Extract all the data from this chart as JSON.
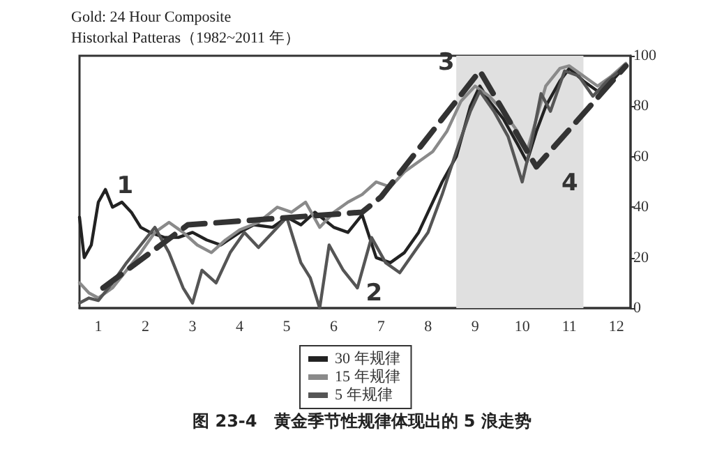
{
  "chart_data": {
    "type": "line",
    "title": "Gold: 24 Hour Composite",
    "subtitle": "Historkal Patteras（1982~2011 年）",
    "xlim": [
      0.6,
      12.3
    ],
    "xticks": [
      1,
      2,
      3,
      4,
      5,
      6,
      7,
      8,
      9,
      10,
      11,
      12
    ],
    "ylim": [
      0,
      100
    ],
    "yticks": [
      0,
      20,
      40,
      60,
      80,
      100
    ],
    "grid": false,
    "legend": "bottom",
    "marker": "none",
    "line_style": "solid",
    "series": [
      {
        "name": "30 年规律",
        "color": "#222222",
        "x": [
          0.6,
          0.7,
          0.85,
          1.0,
          1.15,
          1.3,
          1.5,
          1.7,
          1.9,
          2.1,
          2.4,
          2.7,
          3.0,
          3.3,
          3.6,
          4.0,
          4.3,
          4.7,
          5.0,
          5.3,
          5.6,
          6.0,
          6.3,
          6.6,
          6.9,
          7.2,
          7.5,
          7.8,
          8.0,
          8.3,
          8.6,
          8.9,
          9.1,
          9.3,
          9.6,
          9.9,
          10.1,
          10.3,
          10.5,
          10.8,
          11.0,
          11.3,
          11.6,
          11.9,
          12.2
        ],
        "values": [
          36,
          20,
          25,
          42,
          47,
          40,
          42,
          38,
          32,
          30,
          28,
          28,
          30,
          27,
          25,
          30,
          33,
          32,
          36,
          33,
          38,
          32,
          30,
          37,
          20,
          18,
          22,
          30,
          38,
          50,
          60,
          80,
          88,
          82,
          75,
          65,
          58,
          70,
          80,
          90,
          95,
          90,
          86,
          90,
          96
        ]
      },
      {
        "name": "15 年规律",
        "color": "#8a8a8a",
        "x": [
          0.6,
          0.8,
          1.0,
          1.3,
          1.6,
          1.9,
          2.2,
          2.5,
          2.8,
          3.1,
          3.4,
          3.7,
          4.0,
          4.4,
          4.8,
          5.1,
          5.4,
          5.7,
          6.0,
          6.3,
          6.6,
          6.9,
          7.2,
          7.5,
          7.8,
          8.1,
          8.4,
          8.7,
          9.0,
          9.3,
          9.6,
          9.9,
          10.1,
          10.3,
          10.5,
          10.8,
          11.0,
          11.3,
          11.6,
          11.9,
          12.2
        ],
        "values": [
          10,
          6,
          4,
          8,
          15,
          22,
          30,
          34,
          30,
          25,
          22,
          27,
          31,
          34,
          40,
          38,
          42,
          32,
          38,
          42,
          45,
          50,
          48,
          54,
          58,
          62,
          70,
          82,
          88,
          84,
          78,
          70,
          62,
          75,
          88,
          95,
          96,
          92,
          88,
          92,
          97
        ]
      },
      {
        "name": "5 年规律",
        "color": "#555555",
        "x": [
          0.6,
          0.8,
          1.0,
          1.3,
          1.6,
          1.9,
          2.2,
          2.5,
          2.8,
          3.0,
          3.2,
          3.5,
          3.8,
          4.1,
          4.4,
          4.7,
          5.0,
          5.3,
          5.5,
          5.7,
          5.9,
          6.2,
          6.5,
          6.8,
          7.1,
          7.4,
          7.7,
          8.0,
          8.3,
          8.6,
          8.9,
          9.1,
          9.4,
          9.7,
          10.0,
          10.2,
          10.4,
          10.6,
          10.9,
          11.2,
          11.5,
          11.8,
          12.2
        ],
        "values": [
          2,
          4,
          3,
          10,
          18,
          25,
          32,
          22,
          8,
          2,
          15,
          10,
          22,
          30,
          24,
          30,
          36,
          18,
          12,
          0,
          25,
          15,
          8,
          28,
          18,
          14,
          22,
          30,
          45,
          62,
          78,
          86,
          78,
          68,
          50,
          66,
          85,
          78,
          94,
          92,
          84,
          90,
          96
        ]
      },
      {
        "type": "line",
        "line_style": "dashed",
        "color": "#333333",
        "x": [
          1.1,
          2.9,
          6.6,
          7.0,
          9.1,
          10.3,
          12.2
        ],
        "values": [
          8,
          33,
          38,
          44,
          94,
          56,
          96
        ]
      }
    ],
    "bands": [
      {
        "axis": "x",
        "from": 8.6,
        "to": 11.3,
        "color": "#e0e0e0"
      }
    ],
    "annotations": [
      {
        "text": "1",
        "x": 2.9,
        "y": 33
      },
      {
        "text": "2",
        "x": 6.5,
        "y": 8
      },
      {
        "text": "3",
        "x": 9.1,
        "y": 94
      },
      {
        "text": "4",
        "x": 10.3,
        "y": 56
      },
      "图 23-4　黄金季节性规律体现出的 5 浪走势"
    ]
  }
}
